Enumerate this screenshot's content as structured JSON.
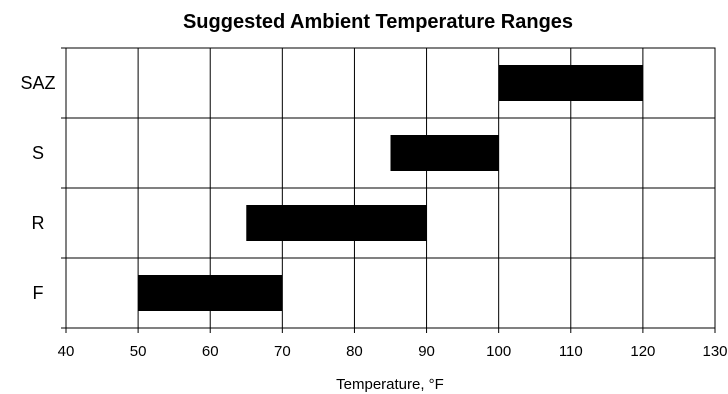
{
  "chart_data": {
    "type": "bar",
    "orientation": "horizontal-range",
    "title": "Suggested Ambient Temperature Ranges",
    "xlabel": "Temperature, °F",
    "ylabel": "",
    "xlim": [
      40,
      130
    ],
    "x_ticks": [
      "40",
      "50",
      "60",
      "70",
      "80",
      "90",
      "100",
      "110",
      "120",
      "130"
    ],
    "categories": [
      "SAZ",
      "S",
      "R",
      "F"
    ],
    "ranges": [
      {
        "category": "SAZ",
        "start": 100,
        "end": 120
      },
      {
        "category": "S",
        "start": 85,
        "end": 100
      },
      {
        "category": "R",
        "start": 65,
        "end": 90
      },
      {
        "category": "F",
        "start": 50,
        "end": 70
      }
    ],
    "grid": true,
    "legend": "none",
    "bar_color": "#000000",
    "grid_color": "#000000"
  }
}
